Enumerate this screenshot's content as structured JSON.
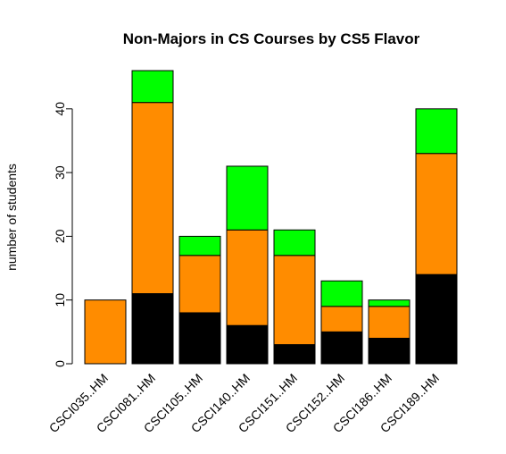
{
  "chart_data": {
    "type": "bar",
    "stacked": true,
    "title": "Non-Majors in CS Courses by CS5 Flavor",
    "xlabel": "",
    "ylabel": "number of students",
    "ylim": [
      0,
      46
    ],
    "yticks": [
      0,
      10,
      20,
      30,
      40
    ],
    "grid": false,
    "legend": "none",
    "categories": [
      "CSCI035..HM",
      "CSCI081..HM",
      "CSCI105..HM",
      "CSCI140..HM",
      "CSCI151..HM",
      "CSCI152..HM",
      "CSCI186..HM",
      "CSCI189..HM"
    ],
    "series": [
      {
        "color": "#000000",
        "values": [
          0,
          11,
          8,
          6,
          3,
          5,
          4,
          14
        ]
      },
      {
        "color": "#ff8c00",
        "values": [
          10,
          30,
          9,
          15,
          14,
          4,
          5,
          19
        ]
      },
      {
        "color": "#00ff00",
        "values": [
          0,
          5,
          3,
          10,
          4,
          4,
          1,
          7
        ]
      }
    ]
  }
}
